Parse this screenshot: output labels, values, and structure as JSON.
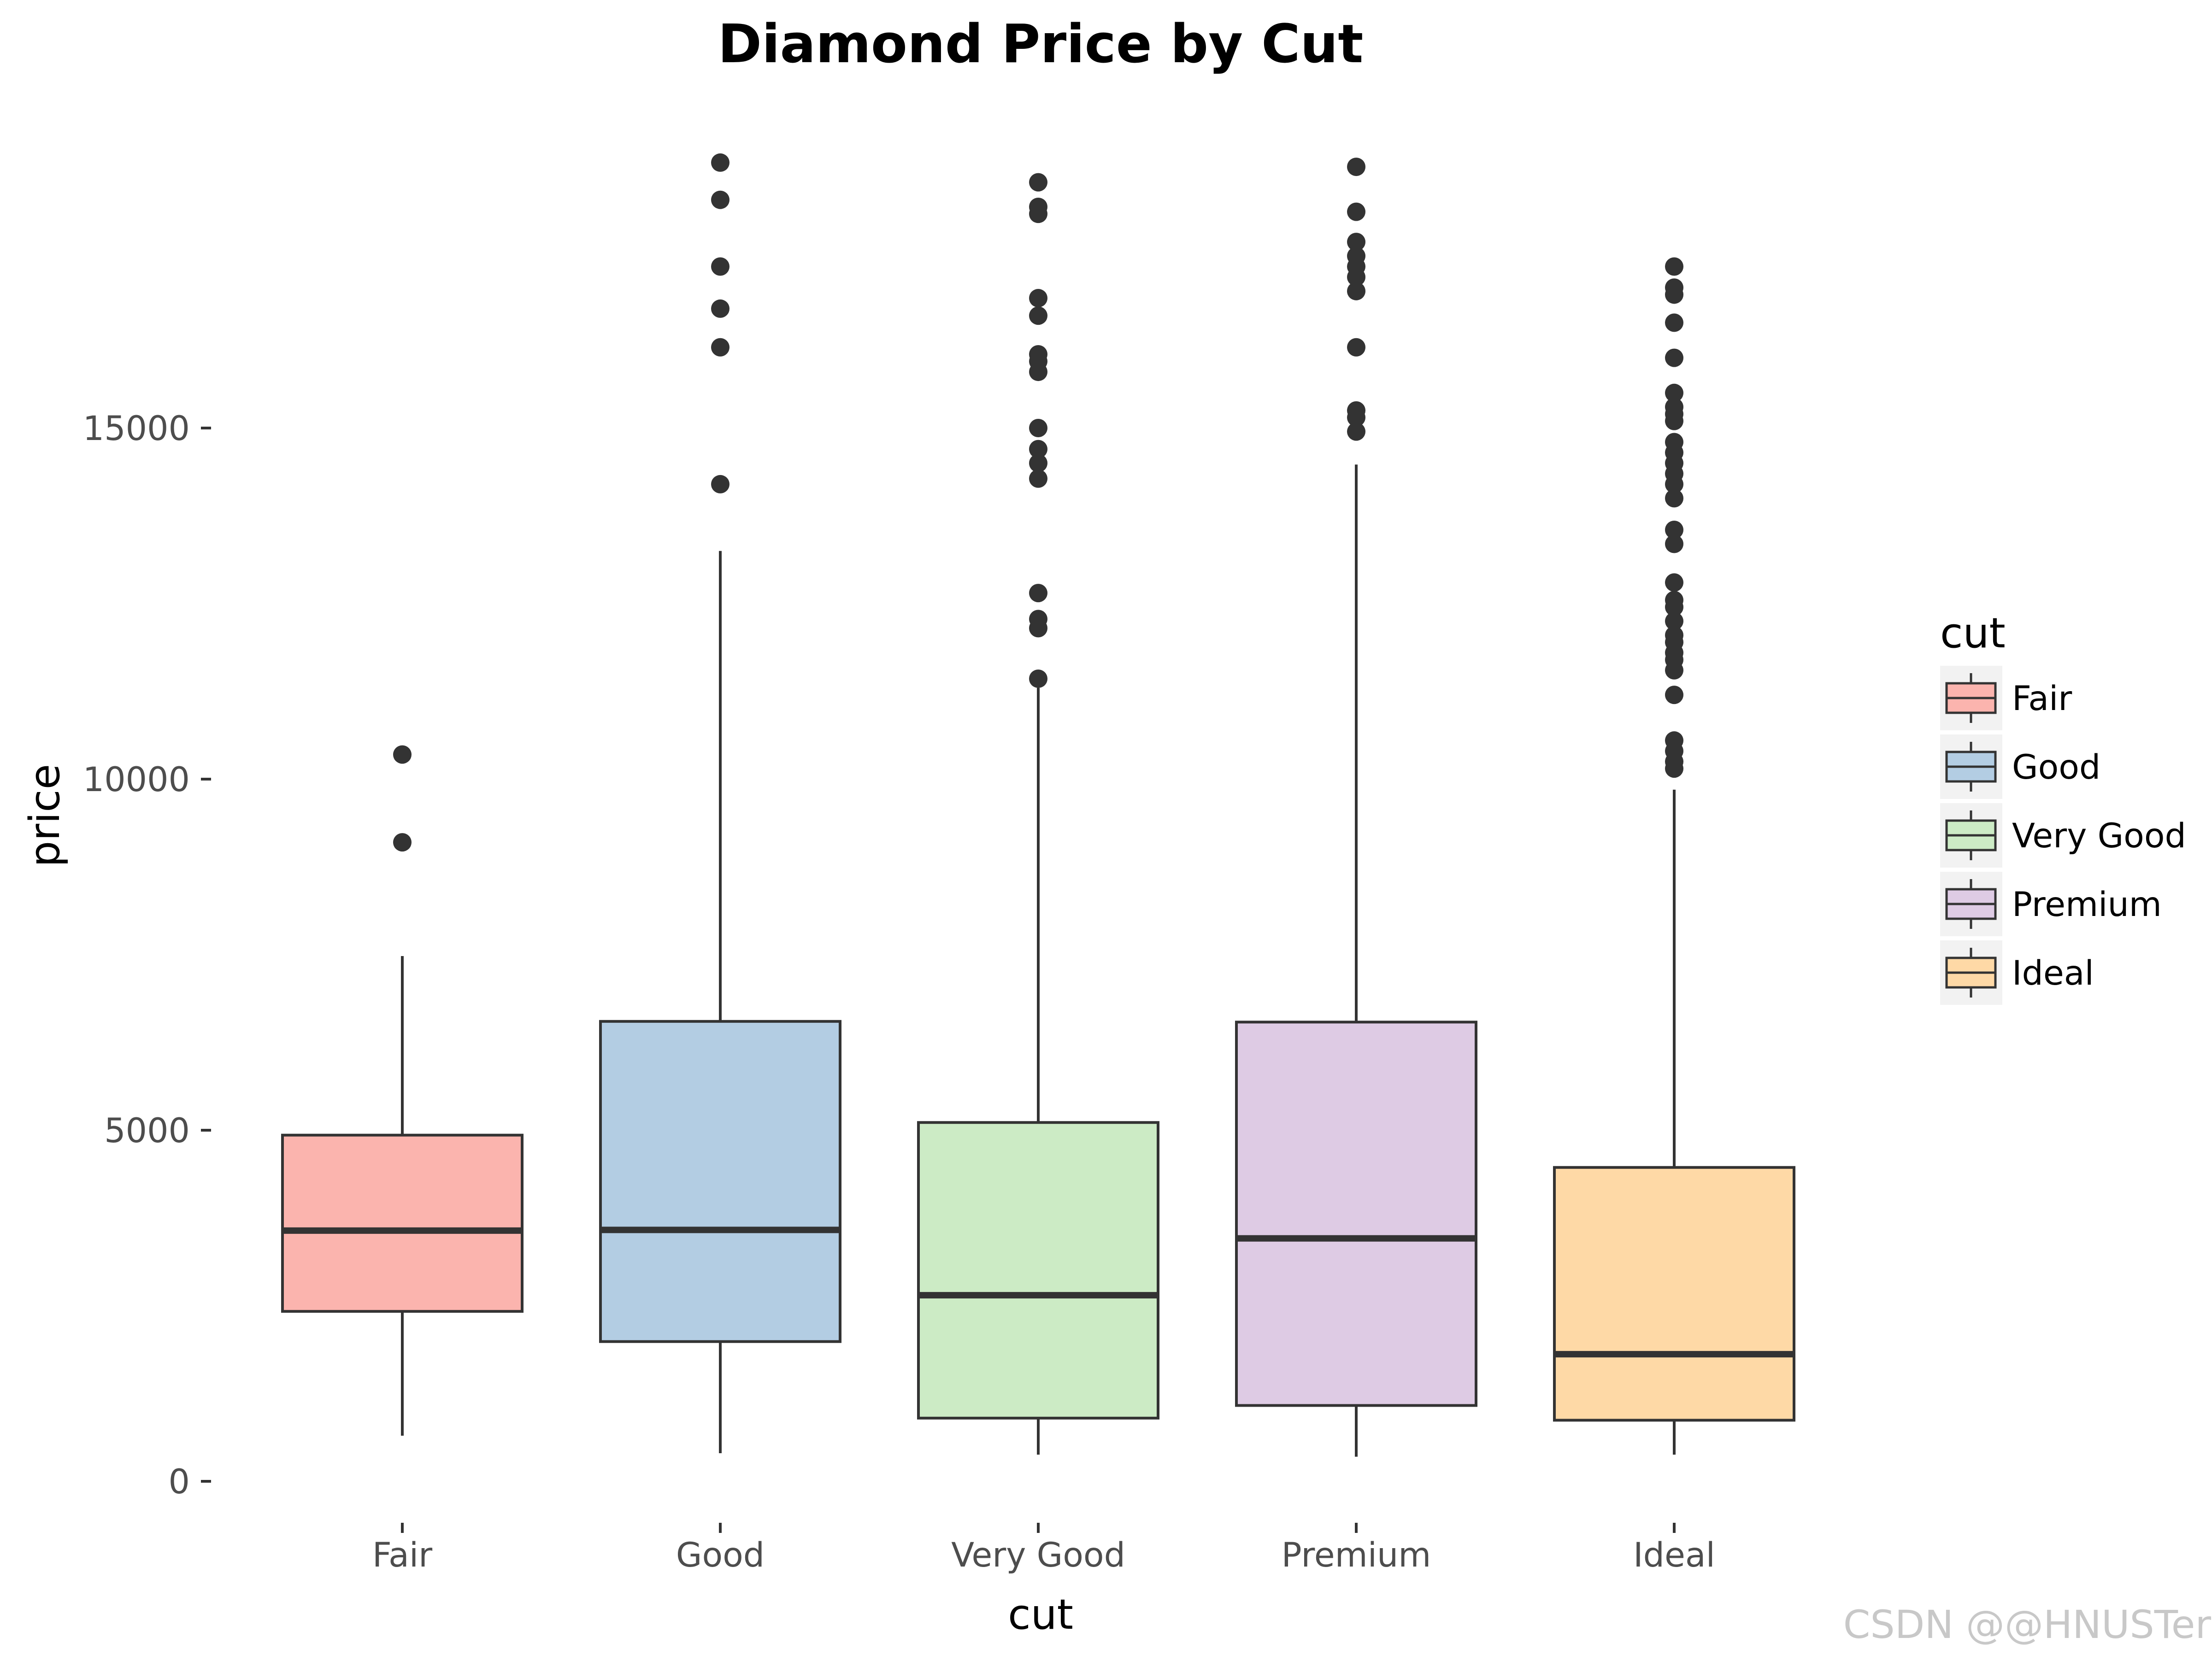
{
  "chart_data": {
    "type": "box",
    "title": "Diamond Price by Cut",
    "xlabel": "cut",
    "ylabel": "price",
    "ylim": [
      -800,
      19500
    ],
    "y_ticks": [
      0,
      5000,
      10000,
      15000
    ],
    "y_tick_labels": [
      "0",
      "5000",
      "10000",
      "15000"
    ],
    "categories": [
      "Fair",
      "Good",
      "Very Good",
      "Premium",
      "Ideal"
    ],
    "grid": false,
    "legend": {
      "title": "cut",
      "position": "right",
      "items": [
        "Fair",
        "Good",
        "Very Good",
        "Premium",
        "Ideal"
      ]
    },
    "series": [
      {
        "category": "Fair",
        "color": "#fbb4ae",
        "whisker_low": 650,
        "q1": 2420,
        "median": 3570,
        "q3": 4930,
        "whisker_high": 7480,
        "outliers": [
          9100,
          10350
        ]
      },
      {
        "category": "Good",
        "color": "#b3cde3",
        "whisker_low": 400,
        "q1": 1990,
        "median": 3580,
        "q3": 6550,
        "whisker_high": 13250,
        "outliers": [
          14200,
          16150,
          16700,
          17300,
          18250,
          18780
        ]
      },
      {
        "category": "Very Good",
        "color": "#ccebc5",
        "whisker_low": 380,
        "q1": 900,
        "median": 2650,
        "q3": 5110,
        "whisker_high": 11300,
        "outliers": [
          11430,
          12150,
          12280,
          12650,
          14280,
          14500,
          14700,
          15000,
          15800,
          15950,
          16050,
          16600,
          16850,
          18050,
          18150,
          18500
        ]
      },
      {
        "category": "Premium",
        "color": "#decbe4",
        "whisker_low": 350,
        "q1": 1080,
        "median": 3460,
        "q3": 6540,
        "whisker_high": 14480,
        "outliers": [
          14950,
          15150,
          15250,
          16150,
          16950,
          17150,
          17300,
          17450,
          17650,
          18080,
          18720
        ]
      },
      {
        "category": "Ideal",
        "color": "#fed9a6",
        "whisker_low": 380,
        "q1": 870,
        "median": 1810,
        "q3": 4470,
        "whisker_high": 9850,
        "outliers": [
          10150,
          10250,
          10400,
          10550,
          11200,
          11550,
          11700,
          11800,
          11950,
          12050,
          12250,
          12450,
          12550,
          12800,
          13350,
          13550,
          14000,
          14200,
          14350,
          14500,
          14650,
          14800,
          15100,
          15200,
          15300,
          15500,
          16000,
          16500,
          16900,
          17000,
          17300
        ]
      }
    ]
  },
  "watermark": "CSDN @@HNUSTer"
}
